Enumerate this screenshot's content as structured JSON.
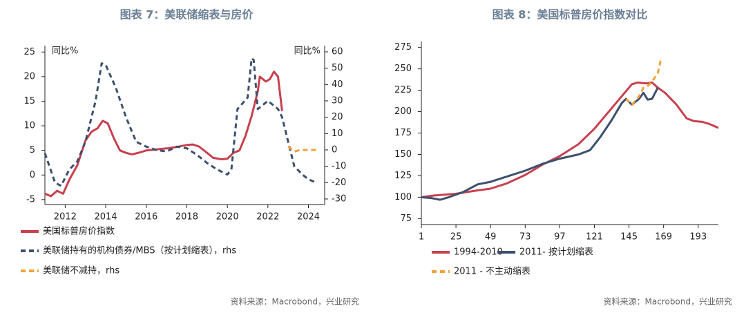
{
  "chart_data": [
    {
      "type": "line",
      "title": "图表 7：美联储缩表与房价",
      "y_label": "同比%",
      "y2_label": "同比%",
      "source": "资料来源：Macrobond，兴业研究",
      "xlim": [
        2011,
        2024.8
      ],
      "xticks": [
        2012,
        2014,
        2016,
        2018,
        2020,
        2022,
        2024
      ],
      "ylim": [
        -6,
        26.3
      ],
      "yticks": [
        -5,
        0,
        5,
        10,
        15,
        20,
        25
      ],
      "y2lim": [
        -33.4,
        63.8
      ],
      "y2ticks": [
        -30,
        -20,
        -10,
        0,
        10,
        20,
        30,
        40,
        50,
        60
      ],
      "series": [
        {
          "name": "美国标普房价指数",
          "color": "#c8404e",
          "style": "solid",
          "width": 3,
          "x": [
            2011.0,
            2011.3,
            2011.6,
            2011.9,
            2012.2,
            2012.6,
            2013.0,
            2013.3,
            2013.6,
            2013.85,
            2014.1,
            2014.4,
            2014.7,
            2015.0,
            2015.3,
            2015.7,
            2016.0,
            2016.5,
            2017.0,
            2017.5,
            2018.0,
            2018.3,
            2018.6,
            2019.0,
            2019.3,
            2019.7,
            2020.0,
            2020.3,
            2020.6,
            2020.9,
            2021.2,
            2021.5,
            2021.6,
            2021.9,
            2022.1,
            2022.3,
            2022.5,
            2022.7
          ],
          "values": [
            -3.8,
            -4.3,
            -3.2,
            -3.8,
            -1,
            2,
            7,
            8.8,
            9.5,
            11,
            10.5,
            7.5,
            5,
            4.5,
            4.2,
            4.6,
            5,
            5.2,
            5.4,
            5.7,
            6.1,
            6.2,
            5.8,
            4.5,
            3.5,
            3.2,
            3.3,
            4.5,
            5,
            8,
            12,
            17,
            20,
            19,
            19.5,
            21,
            20,
            13
          ]
        },
        {
          "name": "美联储持有的机构债券/MBS（按计划缩表），rhs",
          "color": "#3d4f6e",
          "style": "dashed",
          "width": 3,
          "axis": "y2",
          "x": [
            2011.0,
            2011.5,
            2011.8,
            2012.2,
            2012.6,
            2013.0,
            2013.5,
            2013.8,
            2014.0,
            2014.5,
            2015.0,
            2015.5,
            2016.0,
            2016.5,
            2017.0,
            2017.5,
            2018.0,
            2018.5,
            2019.0,
            2019.5,
            2020.0,
            2020.2,
            2020.5,
            2021.0,
            2021.2,
            2021.3,
            2021.5,
            2022.0,
            2022.5,
            2022.7,
            2023.0,
            2023.3,
            2023.7,
            2024.0,
            2024.4
          ],
          "values": [
            -2,
            -20,
            -22,
            -12,
            -7,
            5,
            30,
            53,
            52,
            38,
            20,
            5,
            2,
            0,
            -1,
            2,
            1,
            -3,
            -8,
            -12,
            -15,
            -12,
            25,
            32,
            56,
            55,
            25,
            30,
            25,
            20,
            5,
            -10,
            -15,
            -18,
            -20
          ]
        },
        {
          "name": "美联储不减持，rhs",
          "color": "#f2a23a",
          "style": "dashed",
          "width": 3,
          "axis": "y2",
          "x": [
            2023.0,
            2023.3,
            2023.6,
            2024.0,
            2024.4
          ],
          "values": [
            2,
            -1,
            0,
            0,
            0
          ]
        }
      ]
    },
    {
      "type": "line",
      "title": "图表 8：美国标普房价指数对比",
      "source": "资料来源：Macrobond，兴业研究",
      "xlim": [
        1,
        207
      ],
      "xticks": [
        1,
        25,
        49,
        73,
        97,
        121,
        145,
        169,
        193
      ],
      "ylim": [
        68,
        282
      ],
      "yticks": [
        75,
        100,
        125,
        150,
        175,
        200,
        225,
        250,
        275
      ],
      "series": [
        {
          "name": "1994-2010",
          "color": "#c8404e",
          "style": "solid",
          "width": 3,
          "x": [
            1,
            10,
            25,
            40,
            49,
            60,
            73,
            85,
            97,
            110,
            121,
            130,
            140,
            147,
            151,
            157,
            161,
            165,
            170,
            178,
            185,
            190,
            196,
            200,
            203,
            207
          ],
          "values": [
            100,
            102,
            104,
            108,
            110,
            116,
            126,
            138,
            148,
            162,
            180,
            198,
            218,
            232,
            234,
            233,
            234,
            228,
            222,
            208,
            192,
            189,
            188,
            186,
            184,
            181
          ]
        },
        {
          "name": "2011- 按计划缩表",
          "color": "#3d4f6e",
          "style": "solid",
          "width": 3,
          "x": [
            1,
            8,
            14,
            20,
            30,
            40,
            49,
            60,
            73,
            85,
            97,
            110,
            118,
            125,
            133,
            140,
            143,
            147,
            152,
            155,
            158,
            161,
            165
          ],
          "values": [
            100,
            99,
            97,
            100,
            106,
            115,
            118,
            124,
            131,
            139,
            145,
            150,
            155,
            170,
            190,
            210,
            215,
            208,
            215,
            222,
            214,
            215,
            228
          ]
        },
        {
          "name": "2011 - 不主动缩表",
          "color": "#f2a23a",
          "style": "dashed",
          "width": 3,
          "x": [
            143,
            147,
            152,
            155,
            158,
            161,
            165,
            167
          ],
          "values": [
            215,
            208,
            218,
            228,
            230,
            235,
            245,
            260
          ]
        }
      ]
    }
  ]
}
